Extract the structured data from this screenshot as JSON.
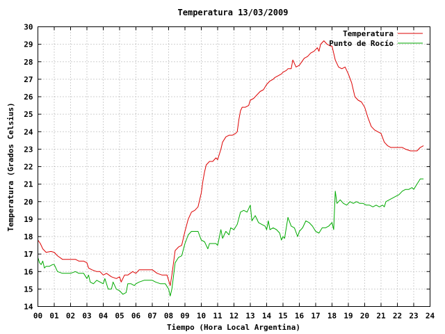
{
  "chart_data": {
    "type": "line",
    "title": "Temperatura 13/03/2009",
    "xlabel": "Tiempo (Hora Local Argentina)",
    "ylabel": "Temperatura (Grados Celsius)",
    "xlim": [
      0,
      24
    ],
    "ylim": [
      14,
      30
    ],
    "grid": true,
    "legend_position": "top-right",
    "x_tick_labels": [
      "00",
      "01",
      "02",
      "03",
      "04",
      "05",
      "06",
      "07",
      "08",
      "09",
      "10",
      "11",
      "12",
      "13",
      "14",
      "15",
      "16",
      "17",
      "18",
      "19",
      "20",
      "21",
      "22",
      "23",
      "24"
    ],
    "y_tick_labels": [
      "14",
      "15",
      "16",
      "17",
      "18",
      "19",
      "20",
      "21",
      "22",
      "23",
      "24",
      "25",
      "26",
      "27",
      "28",
      "29",
      "30"
    ],
    "series": [
      {
        "name": "Temperatura",
        "color": "#dd0000",
        "points": [
          [
            0,
            17.8
          ],
          [
            0.15,
            17.6
          ],
          [
            0.3,
            17.3
          ],
          [
            0.5,
            17.1
          ],
          [
            0.8,
            17.15
          ],
          [
            1.0,
            17.1
          ],
          [
            1.2,
            16.9
          ],
          [
            1.5,
            16.7
          ],
          [
            2.0,
            16.7
          ],
          [
            2.3,
            16.7
          ],
          [
            2.5,
            16.6
          ],
          [
            2.8,
            16.6
          ],
          [
            3.0,
            16.5
          ],
          [
            3.1,
            16.2
          ],
          [
            3.3,
            16.1
          ],
          [
            3.6,
            16.0
          ],
          [
            3.8,
            16.0
          ],
          [
            4.0,
            15.8
          ],
          [
            4.2,
            15.9
          ],
          [
            4.5,
            15.7
          ],
          [
            4.8,
            15.6
          ],
          [
            5.0,
            15.7
          ],
          [
            5.1,
            15.4
          ],
          [
            5.3,
            15.8
          ],
          [
            5.5,
            15.8
          ],
          [
            5.8,
            16.0
          ],
          [
            6.0,
            15.9
          ],
          [
            6.2,
            16.1
          ],
          [
            6.5,
            16.1
          ],
          [
            6.8,
            16.1
          ],
          [
            7.0,
            16.1
          ],
          [
            7.3,
            15.9
          ],
          [
            7.6,
            15.8
          ],
          [
            7.9,
            15.8
          ],
          [
            8.0,
            15.5
          ],
          [
            8.1,
            15.2
          ],
          [
            8.2,
            15.8
          ],
          [
            8.4,
            17.2
          ],
          [
            8.6,
            17.4
          ],
          [
            8.8,
            17.5
          ],
          [
            9.0,
            18.3
          ],
          [
            9.2,
            19.0
          ],
          [
            9.4,
            19.4
          ],
          [
            9.6,
            19.5
          ],
          [
            9.8,
            19.7
          ],
          [
            10.0,
            20.5
          ],
          [
            10.1,
            21.2
          ],
          [
            10.2,
            21.7
          ],
          [
            10.3,
            22.1
          ],
          [
            10.5,
            22.3
          ],
          [
            10.7,
            22.3
          ],
          [
            10.9,
            22.5
          ],
          [
            11.0,
            22.4
          ],
          [
            11.2,
            23.0
          ],
          [
            11.3,
            23.4
          ],
          [
            11.5,
            23.7
          ],
          [
            11.7,
            23.8
          ],
          [
            11.9,
            23.8
          ],
          [
            12.1,
            23.9
          ],
          [
            12.2,
            24.0
          ],
          [
            12.3,
            24.7
          ],
          [
            12.4,
            25.2
          ],
          [
            12.5,
            25.4
          ],
          [
            12.7,
            25.4
          ],
          [
            12.9,
            25.5
          ],
          [
            13.0,
            25.8
          ],
          [
            13.2,
            25.9
          ],
          [
            13.4,
            26.1
          ],
          [
            13.6,
            26.3
          ],
          [
            13.8,
            26.4
          ],
          [
            14.0,
            26.7
          ],
          [
            14.2,
            26.9
          ],
          [
            14.4,
            27.0
          ],
          [
            14.5,
            27.1
          ],
          [
            14.7,
            27.2
          ],
          [
            14.9,
            27.3
          ],
          [
            15.0,
            27.4
          ],
          [
            15.2,
            27.5
          ],
          [
            15.3,
            27.6
          ],
          [
            15.5,
            27.6
          ],
          [
            15.6,
            28.1
          ],
          [
            15.8,
            27.7
          ],
          [
            16.0,
            27.8
          ],
          [
            16.3,
            28.2
          ],
          [
            16.5,
            28.3
          ],
          [
            16.7,
            28.5
          ],
          [
            16.9,
            28.6
          ],
          [
            17.1,
            28.8
          ],
          [
            17.2,
            28.6
          ],
          [
            17.3,
            29.0
          ],
          [
            17.5,
            29.2
          ],
          [
            17.7,
            29.0
          ],
          [
            17.9,
            28.9
          ],
          [
            18.0,
            28.9
          ],
          [
            18.2,
            28.1
          ],
          [
            18.4,
            27.7
          ],
          [
            18.6,
            27.6
          ],
          [
            18.8,
            27.7
          ],
          [
            19.0,
            27.3
          ],
          [
            19.2,
            26.8
          ],
          [
            19.4,
            26.0
          ],
          [
            19.6,
            25.8
          ],
          [
            19.8,
            25.7
          ],
          [
            20.0,
            25.4
          ],
          [
            20.2,
            24.8
          ],
          [
            20.4,
            24.3
          ],
          [
            20.6,
            24.1
          ],
          [
            20.8,
            24.0
          ],
          [
            21.0,
            23.9
          ],
          [
            21.2,
            23.4
          ],
          [
            21.4,
            23.2
          ],
          [
            21.6,
            23.1
          ],
          [
            21.8,
            23.1
          ],
          [
            22.0,
            23.1
          ],
          [
            22.3,
            23.1
          ],
          [
            22.5,
            23.0
          ],
          [
            22.8,
            22.9
          ],
          [
            23.0,
            22.9
          ],
          [
            23.2,
            22.9
          ],
          [
            23.4,
            23.1
          ],
          [
            23.6,
            23.2
          ]
        ]
      },
      {
        "name": "Punto de Rocío",
        "color": "#00aa00",
        "points": [
          [
            0,
            16.8
          ],
          [
            0.1,
            16.5
          ],
          [
            0.2,
            16.4
          ],
          [
            0.3,
            16.6
          ],
          [
            0.4,
            16.2
          ],
          [
            0.5,
            16.3
          ],
          [
            0.7,
            16.3
          ],
          [
            0.9,
            16.4
          ],
          [
            1.0,
            16.4
          ],
          [
            1.2,
            16.0
          ],
          [
            1.5,
            15.9
          ],
          [
            2.0,
            15.9
          ],
          [
            2.3,
            16.0
          ],
          [
            2.5,
            15.9
          ],
          [
            2.8,
            15.9
          ],
          [
            3.0,
            15.6
          ],
          [
            3.1,
            15.8
          ],
          [
            3.2,
            15.4
          ],
          [
            3.4,
            15.3
          ],
          [
            3.6,
            15.5
          ],
          [
            3.8,
            15.4
          ],
          [
            4.0,
            15.3
          ],
          [
            4.1,
            15.6
          ],
          [
            4.3,
            15.0
          ],
          [
            4.5,
            15.0
          ],
          [
            4.6,
            15.4
          ],
          [
            4.8,
            15.0
          ],
          [
            5.0,
            14.9
          ],
          [
            5.2,
            14.7
          ],
          [
            5.4,
            14.8
          ],
          [
            5.5,
            15.3
          ],
          [
            5.7,
            15.3
          ],
          [
            5.9,
            15.2
          ],
          [
            6.0,
            15.3
          ],
          [
            6.2,
            15.4
          ],
          [
            6.5,
            15.5
          ],
          [
            6.8,
            15.5
          ],
          [
            7.0,
            15.5
          ],
          [
            7.2,
            15.4
          ],
          [
            7.5,
            15.3
          ],
          [
            7.8,
            15.3
          ],
          [
            8.0,
            15.0
          ],
          [
            8.1,
            14.6
          ],
          [
            8.2,
            15.0
          ],
          [
            8.4,
            16.5
          ],
          [
            8.6,
            16.8
          ],
          [
            8.8,
            16.9
          ],
          [
            9.0,
            17.6
          ],
          [
            9.2,
            18.1
          ],
          [
            9.4,
            18.3
          ],
          [
            9.6,
            18.3
          ],
          [
            9.8,
            18.3
          ],
          [
            10.0,
            17.8
          ],
          [
            10.2,
            17.7
          ],
          [
            10.4,
            17.3
          ],
          [
            10.5,
            17.6
          ],
          [
            10.7,
            17.6
          ],
          [
            10.9,
            17.6
          ],
          [
            11.0,
            17.5
          ],
          [
            11.2,
            18.4
          ],
          [
            11.3,
            17.9
          ],
          [
            11.5,
            18.3
          ],
          [
            11.7,
            18.1
          ],
          [
            11.8,
            18.5
          ],
          [
            12.0,
            18.4
          ],
          [
            12.2,
            18.7
          ],
          [
            12.4,
            19.4
          ],
          [
            12.6,
            19.5
          ],
          [
            12.8,
            19.4
          ],
          [
            13.0,
            19.8
          ],
          [
            13.1,
            18.9
          ],
          [
            13.3,
            19.2
          ],
          [
            13.5,
            18.8
          ],
          [
            13.7,
            18.7
          ],
          [
            13.9,
            18.6
          ],
          [
            14.0,
            18.4
          ],
          [
            14.1,
            18.9
          ],
          [
            14.2,
            18.4
          ],
          [
            14.4,
            18.5
          ],
          [
            14.6,
            18.4
          ],
          [
            14.8,
            18.2
          ],
          [
            14.9,
            17.8
          ],
          [
            15.0,
            18.0
          ],
          [
            15.1,
            17.9
          ],
          [
            15.3,
            19.1
          ],
          [
            15.5,
            18.6
          ],
          [
            15.7,
            18.5
          ],
          [
            15.9,
            18.0
          ],
          [
            16.0,
            18.3
          ],
          [
            16.2,
            18.5
          ],
          [
            16.4,
            18.9
          ],
          [
            16.6,
            18.8
          ],
          [
            16.8,
            18.6
          ],
          [
            17.0,
            18.3
          ],
          [
            17.2,
            18.2
          ],
          [
            17.4,
            18.5
          ],
          [
            17.6,
            18.5
          ],
          [
            17.8,
            18.6
          ],
          [
            18.0,
            18.8
          ],
          [
            18.1,
            18.4
          ],
          [
            18.2,
            20.6
          ],
          [
            18.3,
            19.9
          ],
          [
            18.5,
            20.1
          ],
          [
            18.7,
            19.9
          ],
          [
            18.9,
            19.8
          ],
          [
            19.1,
            20.0
          ],
          [
            19.3,
            19.9
          ],
          [
            19.5,
            20.0
          ],
          [
            19.7,
            19.9
          ],
          [
            19.9,
            19.9
          ],
          [
            20.1,
            19.8
          ],
          [
            20.3,
            19.8
          ],
          [
            20.5,
            19.7
          ],
          [
            20.7,
            19.8
          ],
          [
            20.9,
            19.7
          ],
          [
            21.1,
            19.8
          ],
          [
            21.2,
            19.7
          ],
          [
            21.3,
            20.0
          ],
          [
            21.5,
            20.1
          ],
          [
            21.7,
            20.2
          ],
          [
            21.9,
            20.3
          ],
          [
            22.1,
            20.4
          ],
          [
            22.3,
            20.6
          ],
          [
            22.5,
            20.7
          ],
          [
            22.7,
            20.7
          ],
          [
            22.9,
            20.8
          ],
          [
            23.0,
            20.7
          ],
          [
            23.2,
            21.0
          ],
          [
            23.4,
            21.3
          ],
          [
            23.6,
            21.3
          ]
        ]
      }
    ]
  }
}
